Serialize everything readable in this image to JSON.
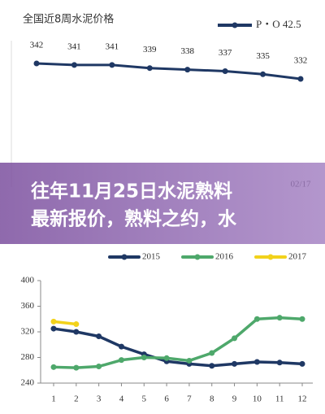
{
  "banner": {
    "lines": [
      "往年11月25日水泥熟料",
      "最新报价，熟料之约，水"
    ]
  },
  "chart_data": [
    {
      "type": "line",
      "title": "全国近8周水泥价格",
      "categories": [
        null,
        null,
        null,
        null,
        null,
        null,
        null,
        "02/17"
      ],
      "series": [
        {
          "name": "P・O 42.5",
          "color": "#1f3864",
          "values": [
            342,
            341,
            341,
            339,
            338,
            337,
            335,
            332
          ]
        }
      ]
    },
    {
      "type": "line",
      "x": [
        1,
        2,
        3,
        4,
        5,
        6,
        7,
        8,
        9,
        10,
        11,
        12
      ],
      "xlim": [
        1,
        12
      ],
      "xticks": [
        1,
        2,
        3,
        4,
        5,
        6,
        7,
        8,
        9,
        10,
        11,
        12
      ],
      "ylim": [
        240,
        400
      ],
      "yticks": [
        240,
        280,
        320,
        360,
        400
      ],
      "series": [
        {
          "name": "2015",
          "color": "#1f3864",
          "values": [
            325,
            320,
            313,
            297,
            285,
            274,
            270,
            267,
            270,
            273,
            272,
            270
          ]
        },
        {
          "name": "2016",
          "color": "#4ea86b",
          "values": [
            265,
            264,
            266,
            276,
            280,
            279,
            275,
            287,
            310,
            340,
            342,
            340
          ]
        },
        {
          "name": "2017",
          "color": "#f2d21b",
          "values": [
            336,
            332,
            null,
            null,
            null,
            null,
            null,
            null,
            null,
            null,
            null,
            null
          ]
        }
      ]
    }
  ]
}
